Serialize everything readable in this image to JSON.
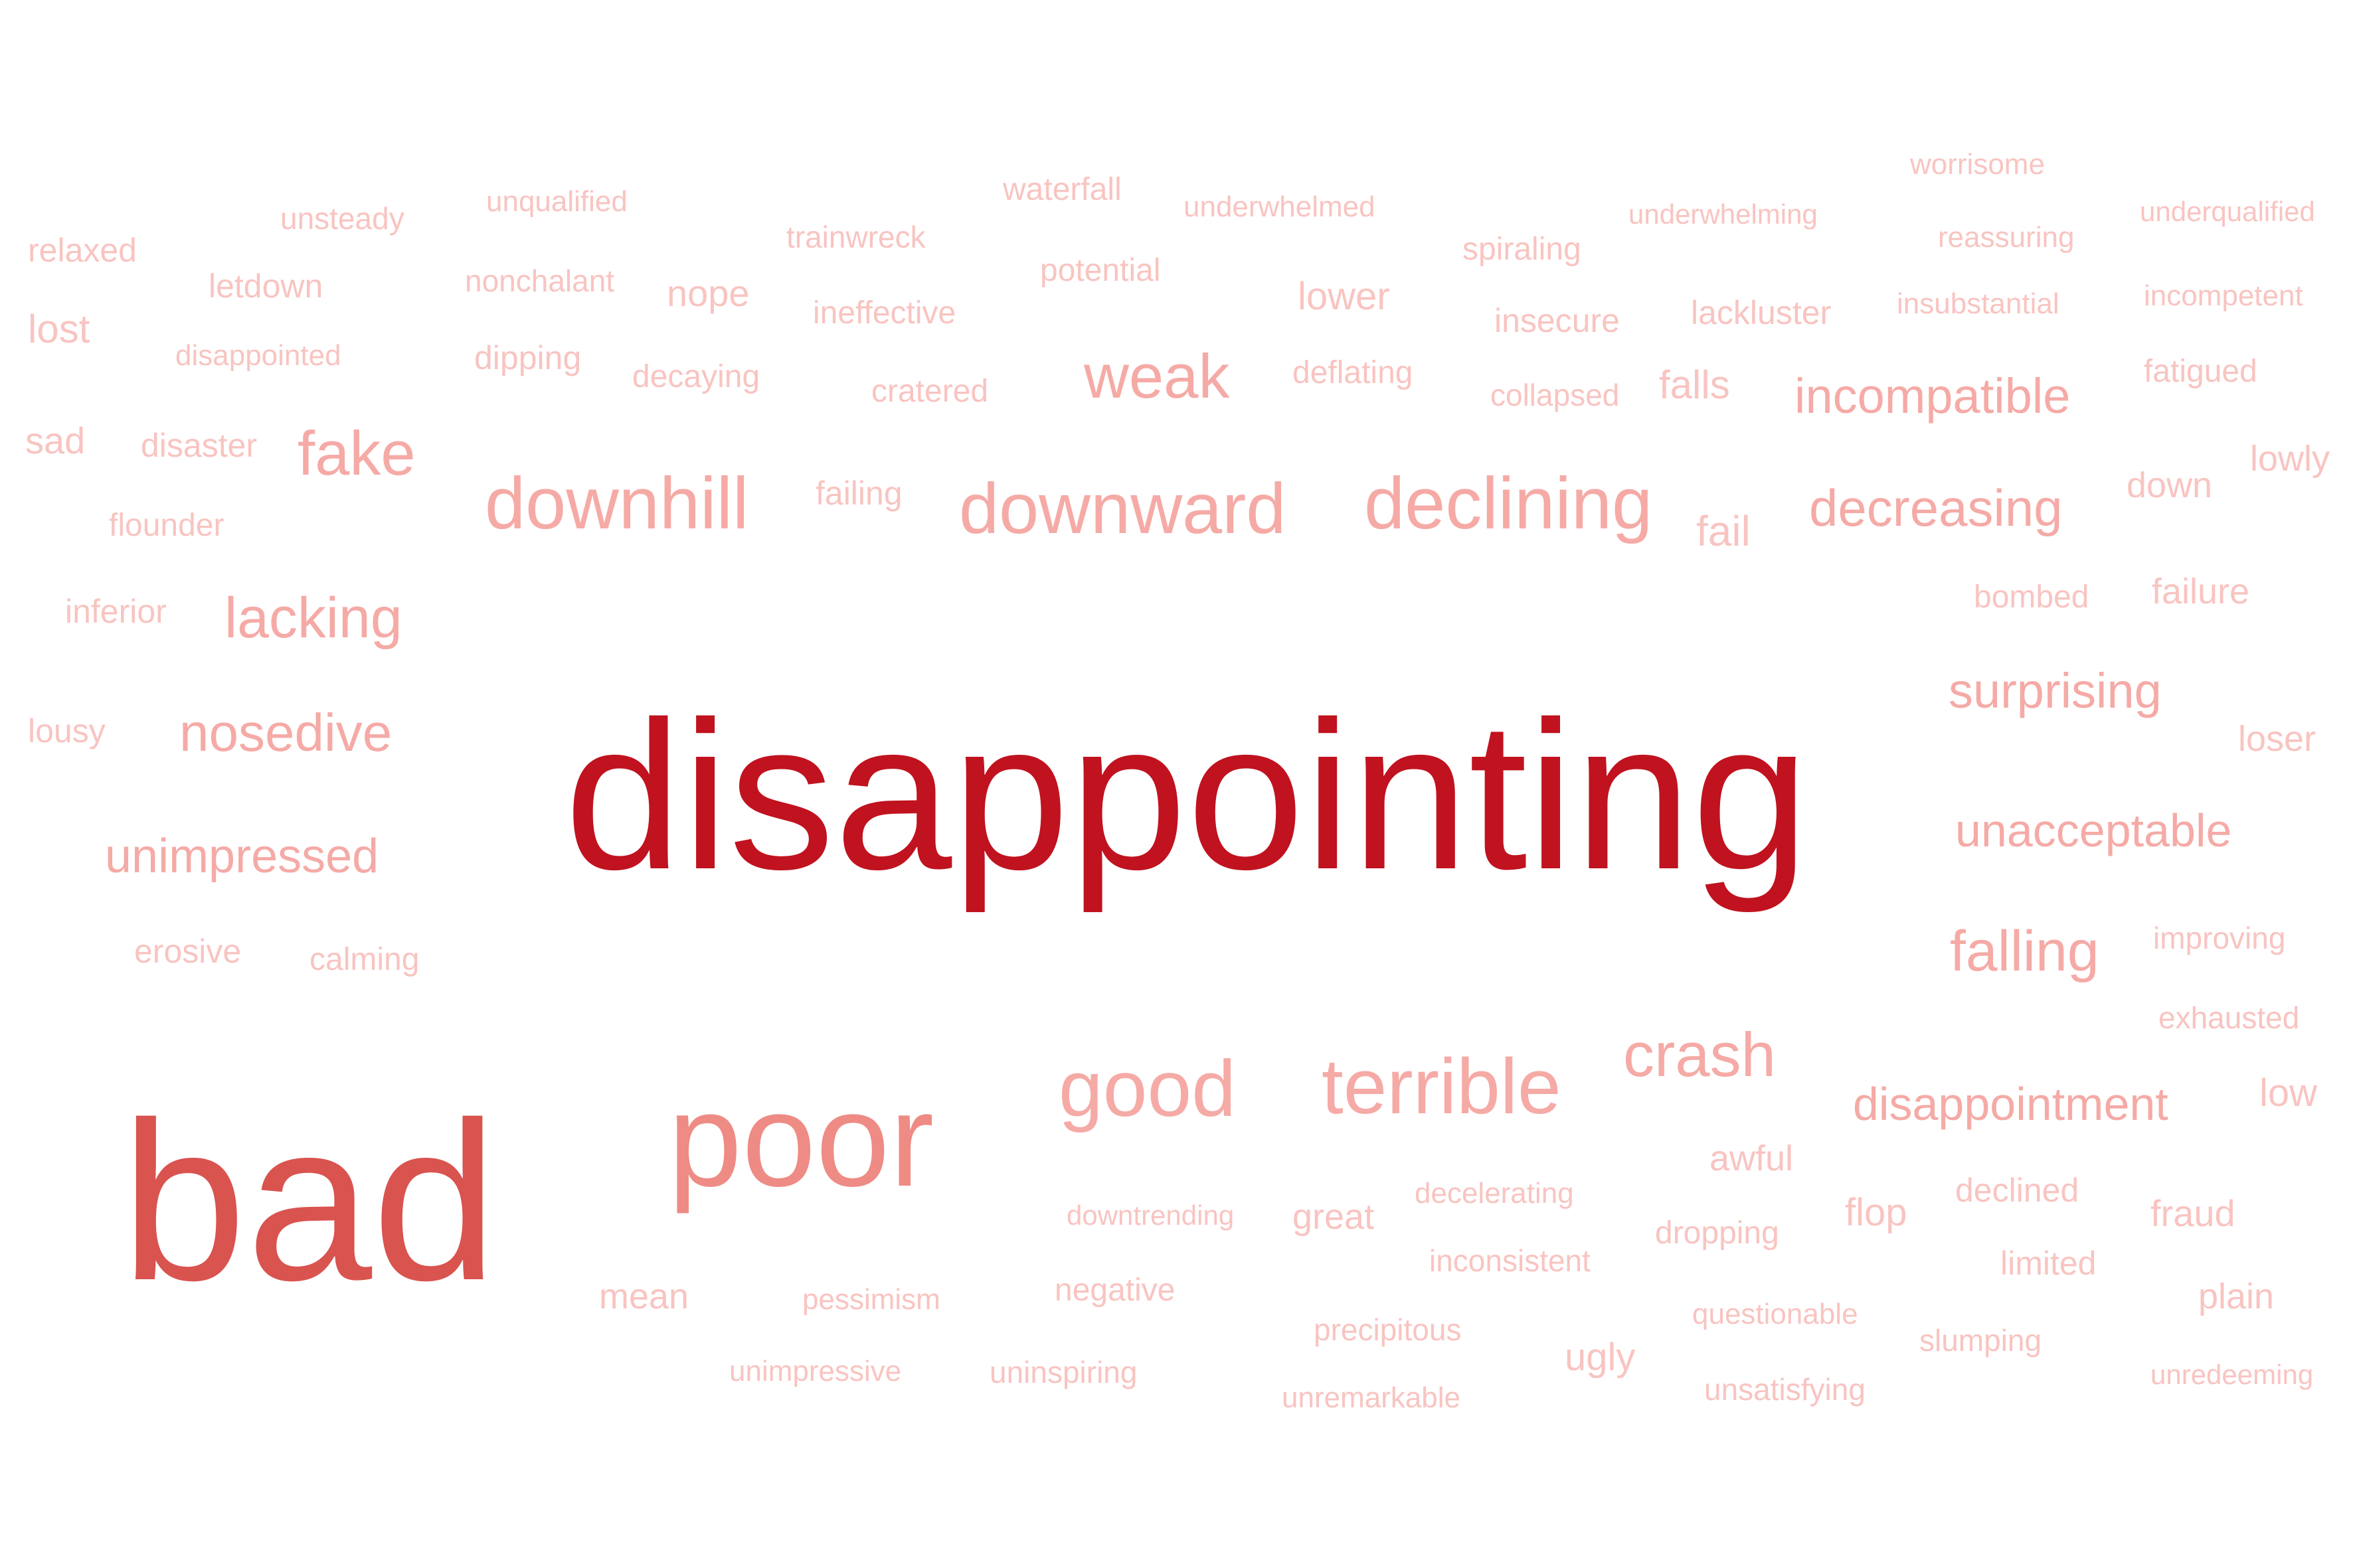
{
  "words": {
    "disappointing": "disappointing",
    "bad": "bad",
    "poor": "poor",
    "good": "good",
    "terrible": "terrible",
    "crash": "crash",
    "downhill": "downhill",
    "downward": "downward",
    "declining": "declining",
    "weak": "weak",
    "fake": "fake",
    "lacking": "lacking",
    "nosedive": "nosedive",
    "unimpressed": "unimpressed",
    "incompatible": "incompatible",
    "decreasing": "decreasing",
    "surprising": "surprising",
    "unacceptable": "unacceptable",
    "falling": "falling",
    "disappointment": "disappointment",
    "fail": "fail",
    "falls": "falls",
    "relaxed": "relaxed",
    "unsteady": "unsteady",
    "unqualified": "unqualified",
    "waterfall": "waterfall",
    "trainwreck": "trainwreck",
    "underwhelmed": "underwhelmed",
    "worrisome": "worrisome",
    "underwhelming": "underwhelming",
    "reassuring": "reassuring",
    "underqualified": "underqualified",
    "spiraling": "spiraling",
    "letdown": "letdown",
    "lost": "lost",
    "nonchalant": "nonchalant",
    "nope": "nope",
    "potential": "potential",
    "ineffective": "ineffective",
    "lower": "lower",
    "insecure": "insecure",
    "lackluster": "lackluster",
    "insubstantial": "insubstantial",
    "incompetent": "incompetent",
    "disappointed": "disappointed",
    "dipping": "dipping",
    "decaying": "decaying",
    "deflating": "deflating",
    "cratered": "cratered",
    "collapsed": "collapsed",
    "fatigued": "fatigued",
    "sad": "sad",
    "disaster": "disaster",
    "lowly": "lowly",
    "failing": "failing",
    "down": "down",
    "flounder": "flounder",
    "bombed": "bombed",
    "failure": "failure",
    "inferior": "inferior",
    "lousy": "lousy",
    "loser": "loser",
    "erosive": "erosive",
    "calming": "calming",
    "improving": "improving",
    "exhausted": "exhausted",
    "low": "low",
    "awful": "awful",
    "declined": "declined",
    "decelerating": "decelerating",
    "downtrending": "downtrending",
    "great": "great",
    "dropping": "dropping",
    "flop": "flop",
    "fraud": "fraud",
    "inconsistent": "inconsistent",
    "limited": "limited",
    "mean": "mean",
    "pessimism": "pessimism",
    "negative": "negative",
    "plain": "plain",
    "questionable": "questionable",
    "precipitous": "precipitous",
    "slumping": "slumping",
    "ugly": "ugly",
    "unimpressive": "unimpressive",
    "uninspiring": "uninspiring",
    "unredeeming": "unredeeming",
    "unsatisfying": "unsatisfying",
    "unremarkable": "unremarkable"
  },
  "colors": {
    "background": "#ffffff",
    "darkest": "#c0121f",
    "dark": "#d9534f",
    "medium": "#ee8b84",
    "light": "#f5aaa6",
    "lighter": "#f8c4c1",
    "lightest": "#fbd7d5"
  }
}
